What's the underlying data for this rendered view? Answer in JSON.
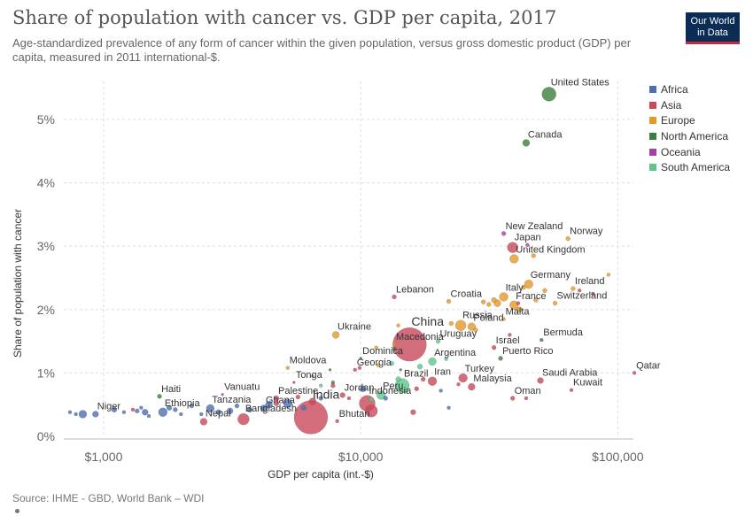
{
  "header": {
    "title": "Share of population with cancer vs. GDP per capita, 2017",
    "subtitle": "Age-standardized prevalence of any form of cancer within the given population, versus gross domestic product (GDP) per capita, measured in 2011 international-$.",
    "logo_line1": "Our World",
    "logo_line2": "in Data"
  },
  "footer": {
    "source": "Source: IHME - GBD, World Bank – WDI"
  },
  "colors": {
    "Africa": "#4c6fb4",
    "Asia": "#c8495a",
    "Europe": "#e39a28",
    "North America": "#3c7e3d",
    "Oceania": "#a540a8",
    "South America": "#5bc78a"
  },
  "chart_data": {
    "type": "scatter",
    "xlabel": "GDP per capita (int.-$)",
    "ylabel": "Share of population with cancer",
    "x_scale": "log",
    "xlim": [
      700,
      115000
    ],
    "ylim": [
      0,
      5.6
    ],
    "x_ticks": [
      {
        "value": 1000,
        "label": "$1,000"
      },
      {
        "value": 10000,
        "label": "$10,000"
      },
      {
        "value": 100000,
        "label": "$100,000"
      }
    ],
    "y_ticks": [
      {
        "value": 0,
        "label": "0%"
      },
      {
        "value": 1,
        "label": "1%"
      },
      {
        "value": 2,
        "label": "2%"
      },
      {
        "value": 3,
        "label": "3%"
      },
      {
        "value": 4,
        "label": "4%"
      },
      {
        "value": 5,
        "label": "5%"
      }
    ],
    "grid": true,
    "legend_position": "right",
    "legend": [
      "Africa",
      "Asia",
      "Europe",
      "North America",
      "Oceania",
      "South America"
    ],
    "labeled_points": [
      {
        "label": "United States",
        "x": 54000,
        "y": 5.4,
        "region": "North America",
        "r": 8
      },
      {
        "label": "Canada",
        "x": 44000,
        "y": 4.63,
        "region": "North America",
        "r": 4
      },
      {
        "label": "New Zealand",
        "x": 36000,
        "y": 3.2,
        "region": "Oceania",
        "r": 2.5
      },
      {
        "label": "Norway",
        "x": 64000,
        "y": 3.12,
        "region": "Europe",
        "r": 2.5
      },
      {
        "label": "Japan",
        "x": 39000,
        "y": 2.98,
        "region": "Asia",
        "r": 6
      },
      {
        "label": "United Kingdom",
        "x": 39500,
        "y": 2.8,
        "region": "Europe",
        "r": 5
      },
      {
        "label": "Germany",
        "x": 45000,
        "y": 2.4,
        "region": "Europe",
        "r": 5
      },
      {
        "label": "Ireland",
        "x": 67000,
        "y": 2.33,
        "region": "Europe",
        "r": 2.5
      },
      {
        "label": "Italy",
        "x": 36000,
        "y": 2.2,
        "region": "Europe",
        "r": 5
      },
      {
        "label": "Switzerland",
        "x": 57000,
        "y": 2.1,
        "region": "Europe",
        "r": 2.5
      },
      {
        "label": "Lebanon",
        "x": 13500,
        "y": 2.2,
        "region": "Asia",
        "r": 2.5
      },
      {
        "label": "Croatia",
        "x": 22000,
        "y": 2.13,
        "region": "Europe",
        "r": 2.5
      },
      {
        "label": "France",
        "x": 39500,
        "y": 2.07,
        "region": "Europe",
        "r": 5
      },
      {
        "label": "Malta",
        "x": 36000,
        "y": 1.85,
        "region": "Europe",
        "r": 2
      },
      {
        "label": "Russia",
        "x": 24500,
        "y": 1.75,
        "region": "Europe",
        "r": 6
      },
      {
        "label": "Poland",
        "x": 27000,
        "y": 1.73,
        "region": "Europe",
        "r": 4.5
      },
      {
        "label": "China",
        "x": 15500,
        "y": 1.45,
        "region": "Asia",
        "r": 19
      },
      {
        "label": "Ukraine",
        "x": 8000,
        "y": 1.6,
        "region": "Europe",
        "r": 4
      },
      {
        "label": "Macedonia",
        "x": 13500,
        "y": 1.45,
        "region": "Europe",
        "r": 2
      },
      {
        "label": "Uruguay",
        "x": 20000,
        "y": 1.5,
        "region": "South America",
        "r": 2.5
      },
      {
        "label": "Israel",
        "x": 33000,
        "y": 1.4,
        "region": "Asia",
        "r": 2.5
      },
      {
        "label": "Bermuda",
        "x": 50500,
        "y": 1.52,
        "region": "North America",
        "r": 2
      },
      {
        "label": "Dominica",
        "x": 10000,
        "y": 1.23,
        "region": "North America",
        "r": 1.5
      },
      {
        "label": "Argentina",
        "x": 19000,
        "y": 1.18,
        "region": "South America",
        "r": 4.5
      },
      {
        "label": "Puerto Rico",
        "x": 35000,
        "y": 1.23,
        "region": "North America",
        "r": 2.5
      },
      {
        "label": "Moldova",
        "x": 5200,
        "y": 1.08,
        "region": "Europe",
        "r": 2
      },
      {
        "label": "Georgia",
        "x": 9500,
        "y": 1.05,
        "region": "Asia",
        "r": 2
      },
      {
        "label": "Tonga",
        "x": 5500,
        "y": 0.85,
        "region": "Oceania",
        "r": 1.5
      },
      {
        "label": "Turkey",
        "x": 25000,
        "y": 0.92,
        "region": "Asia",
        "r": 5
      },
      {
        "label": "Iran",
        "x": 19000,
        "y": 0.87,
        "region": "Asia",
        "r": 5
      },
      {
        "label": "Qatar",
        "x": 116000,
        "y": 1.0,
        "region": "Asia",
        "r": 2
      },
      {
        "label": "Saudi Arabia",
        "x": 50000,
        "y": 0.88,
        "region": "Asia",
        "r": 3.5
      },
      {
        "label": "Malaysia",
        "x": 27000,
        "y": 0.78,
        "region": "Asia",
        "r": 4
      },
      {
        "label": "Kuwait",
        "x": 66000,
        "y": 0.73,
        "region": "Asia",
        "r": 2
      },
      {
        "label": "Haiti",
        "x": 1650,
        "y": 0.63,
        "region": "North America",
        "r": 2.5
      },
      {
        "label": "Vanuatu",
        "x": 2900,
        "y": 0.66,
        "region": "Oceania",
        "r": 1.5
      },
      {
        "label": "Palestine",
        "x": 4700,
        "y": 0.6,
        "region": "Asia",
        "r": 3
      },
      {
        "label": "Jordan",
        "x": 8500,
        "y": 0.65,
        "region": "Asia",
        "r": 3
      },
      {
        "label": "Brazil",
        "x": 14500,
        "y": 0.8,
        "region": "South America",
        "r": 8
      },
      {
        "label": "Peru",
        "x": 12000,
        "y": 0.65,
        "region": "South America",
        "r": 5
      },
      {
        "label": "Oman",
        "x": 39000,
        "y": 0.6,
        "region": "Asia",
        "r": 2.5
      },
      {
        "label": "Ethiopia",
        "x": 1700,
        "y": 0.38,
        "region": "Africa",
        "r": 5
      },
      {
        "label": "Tanzania",
        "x": 2600,
        "y": 0.44,
        "region": "Africa",
        "r": 4.5
      },
      {
        "label": "Ghana",
        "x": 4200,
        "y": 0.44,
        "region": "Africa",
        "r": 4
      },
      {
        "label": "India",
        "x": 6400,
        "y": 0.3,
        "region": "Asia",
        "r": 19
      },
      {
        "label": "Indonesia",
        "x": 10600,
        "y": 0.52,
        "region": "Asia",
        "r": 9
      },
      {
        "label": "Niger",
        "x": 930,
        "y": 0.35,
        "region": "Africa",
        "r": 3.5
      },
      {
        "label": "Nepal",
        "x": 2450,
        "y": 0.23,
        "region": "Asia",
        "r": 4
      },
      {
        "label": "Bangladesh",
        "x": 3500,
        "y": 0.27,
        "region": "Asia",
        "r": 6.5
      },
      {
        "label": "Bhutan",
        "x": 8100,
        "y": 0.24,
        "region": "Asia",
        "r": 2
      }
    ],
    "other_points": [
      {
        "x": 740,
        "y": 0.38,
        "region": "Africa",
        "r": 2
      },
      {
        "x": 780,
        "y": 0.35,
        "region": "Africa",
        "r": 2
      },
      {
        "x": 830,
        "y": 0.35,
        "region": "Africa",
        "r": 4.5
      },
      {
        "x": 1100,
        "y": 0.42,
        "region": "Africa",
        "r": 3
      },
      {
        "x": 1200,
        "y": 0.38,
        "region": "Africa",
        "r": 2
      },
      {
        "x": 1350,
        "y": 0.4,
        "region": "Africa",
        "r": 2.5
      },
      {
        "x": 1400,
        "y": 0.45,
        "region": "Africa",
        "r": 2
      },
      {
        "x": 1450,
        "y": 0.38,
        "region": "Africa",
        "r": 3.5
      },
      {
        "x": 1500,
        "y": 0.32,
        "region": "Africa",
        "r": 2
      },
      {
        "x": 1800,
        "y": 0.45,
        "region": "Africa",
        "r": 3
      },
      {
        "x": 1900,
        "y": 0.42,
        "region": "Africa",
        "r": 2.5
      },
      {
        "x": 2000,
        "y": 0.35,
        "region": "Africa",
        "r": 2
      },
      {
        "x": 2200,
        "y": 0.48,
        "region": "Africa",
        "r": 2.5
      },
      {
        "x": 2400,
        "y": 0.35,
        "region": "Africa",
        "r": 2
      },
      {
        "x": 2800,
        "y": 0.38,
        "region": "Africa",
        "r": 3
      },
      {
        "x": 3100,
        "y": 0.4,
        "region": "Africa",
        "r": 3.5
      },
      {
        "x": 3300,
        "y": 0.48,
        "region": "Africa",
        "r": 2.5
      },
      {
        "x": 3700,
        "y": 0.42,
        "region": "Africa",
        "r": 3
      },
      {
        "x": 4400,
        "y": 0.5,
        "region": "Africa",
        "r": 4
      },
      {
        "x": 5200,
        "y": 0.52,
        "region": "Africa",
        "r": 5
      },
      {
        "x": 6000,
        "y": 0.45,
        "region": "Africa",
        "r": 3
      },
      {
        "x": 7000,
        "y": 0.6,
        "region": "Africa",
        "r": 2.5
      },
      {
        "x": 10200,
        "y": 0.75,
        "region": "Africa",
        "r": 3.5
      },
      {
        "x": 12500,
        "y": 0.6,
        "region": "Africa",
        "r": 2.5
      },
      {
        "x": 20500,
        "y": 0.72,
        "region": "Africa",
        "r": 2
      },
      {
        "x": 22000,
        "y": 0.45,
        "region": "Africa",
        "r": 2
      },
      {
        "x": 1300,
        "y": 0.42,
        "region": "Asia",
        "r": 2
      },
      {
        "x": 4700,
        "y": 0.52,
        "region": "Asia",
        "r": 3
      },
      {
        "x": 5700,
        "y": 0.62,
        "region": "Asia",
        "r": 2.5
      },
      {
        "x": 6500,
        "y": 0.55,
        "region": "Asia",
        "r": 4
      },
      {
        "x": 7800,
        "y": 0.8,
        "region": "Asia",
        "r": 2.5
      },
      {
        "x": 9000,
        "y": 0.6,
        "region": "Asia",
        "r": 2
      },
      {
        "x": 9900,
        "y": 1.08,
        "region": "Asia",
        "r": 2
      },
      {
        "x": 11000,
        "y": 0.4,
        "region": "Asia",
        "r": 7
      },
      {
        "x": 16000,
        "y": 0.38,
        "region": "Asia",
        "r": 3
      },
      {
        "x": 16500,
        "y": 0.75,
        "region": "Asia",
        "r": 2.5
      },
      {
        "x": 17500,
        "y": 0.9,
        "region": "Asia",
        "r": 2.5
      },
      {
        "x": 24000,
        "y": 0.82,
        "region": "Asia",
        "r": 2
      },
      {
        "x": 38000,
        "y": 1.6,
        "region": "Asia",
        "r": 2
      },
      {
        "x": 41000,
        "y": 2.1,
        "region": "Asia",
        "r": 2
      },
      {
        "x": 71000,
        "y": 2.3,
        "region": "Asia",
        "r": 2
      },
      {
        "x": 80000,
        "y": 2.25,
        "region": "Asia",
        "r": 2
      },
      {
        "x": 44000,
        "y": 0.6,
        "region": "Asia",
        "r": 2
      },
      {
        "x": 30000,
        "y": 2.12,
        "region": "Europe",
        "r": 2.5
      },
      {
        "x": 31500,
        "y": 2.08,
        "region": "Europe",
        "r": 2.5
      },
      {
        "x": 33000,
        "y": 2.15,
        "region": "Europe",
        "r": 3
      },
      {
        "x": 34000,
        "y": 2.1,
        "region": "Europe",
        "r": 4
      },
      {
        "x": 41500,
        "y": 2.0,
        "region": "Europe",
        "r": 3
      },
      {
        "x": 43000,
        "y": 2.35,
        "region": "Europe",
        "r": 2.5
      },
      {
        "x": 48000,
        "y": 2.15,
        "region": "Europe",
        "r": 2.5
      },
      {
        "x": 52000,
        "y": 2.3,
        "region": "Europe",
        "r": 2.5
      },
      {
        "x": 47000,
        "y": 2.85,
        "region": "Europe",
        "r": 2.5
      },
      {
        "x": 92000,
        "y": 2.55,
        "region": "Europe",
        "r": 2
      },
      {
        "x": 22500,
        "y": 1.78,
        "region": "Europe",
        "r": 2.5
      },
      {
        "x": 28000,
        "y": 1.68,
        "region": "Europe",
        "r": 2.5
      },
      {
        "x": 11500,
        "y": 1.4,
        "region": "Europe",
        "r": 2
      },
      {
        "x": 14000,
        "y": 1.75,
        "region": "Europe",
        "r": 2
      },
      {
        "x": 11700,
        "y": 1.12,
        "region": "Europe",
        "r": 2
      },
      {
        "x": 7600,
        "y": 1.05,
        "region": "North America",
        "r": 1.5
      },
      {
        "x": 7800,
        "y": 0.85,
        "region": "North America",
        "r": 2
      },
      {
        "x": 14300,
        "y": 1.05,
        "region": "North America",
        "r": 1.5
      },
      {
        "x": 13500,
        "y": 1.38,
        "region": "North America",
        "r": 2
      },
      {
        "x": 44500,
        "y": 3.02,
        "region": "Oceania",
        "r": 2
      },
      {
        "x": 6500,
        "y": 0.95,
        "region": "Oceania",
        "r": 1.5
      },
      {
        "x": 13200,
        "y": 1.15,
        "region": "South America",
        "r": 2.5
      },
      {
        "x": 17000,
        "y": 1.1,
        "region": "South America",
        "r": 3
      },
      {
        "x": 15000,
        "y": 0.72,
        "region": "South America",
        "r": 2.5
      },
      {
        "x": 14000,
        "y": 0.9,
        "region": "South America",
        "r": 3
      },
      {
        "x": 21500,
        "y": 1.22,
        "region": "South America",
        "r": 2
      },
      {
        "x": 7000,
        "y": 0.8,
        "region": "South America",
        "r": 2
      },
      {
        "x": 11000,
        "y": 0.58,
        "region": "South America",
        "r": 2.5
      }
    ]
  }
}
